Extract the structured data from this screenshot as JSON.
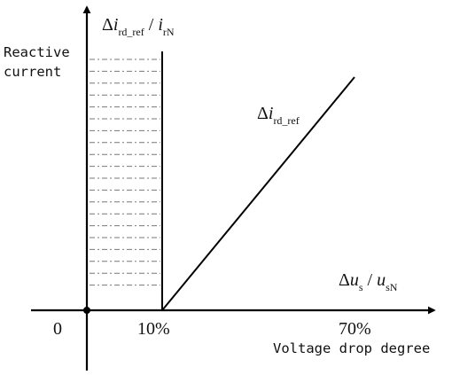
{
  "diagram": {
    "y_axis_label": {
      "delta": "Δ",
      "i": "i",
      "i_sub": "rd_ref",
      "slash": " / ",
      "i2": "i",
      "i2_sub": "rN"
    },
    "y_axis_caption": [
      "Reactive",
      "current"
    ],
    "x_axis_label": {
      "delta": "Δ",
      "u": "u",
      "u_sub": "s",
      "slash": " / ",
      "u2": "u",
      "u2_sub": "sN"
    },
    "x_axis_caption": "Voltage drop degree",
    "origin_label": "0",
    "tick_labels": [
      "10%",
      "70%"
    ],
    "curve_label": {
      "delta": "Δ",
      "i": "i",
      "i_sub": "rd_ref"
    },
    "colors": {
      "line": "#000000",
      "hatch": "#777777"
    }
  }
}
